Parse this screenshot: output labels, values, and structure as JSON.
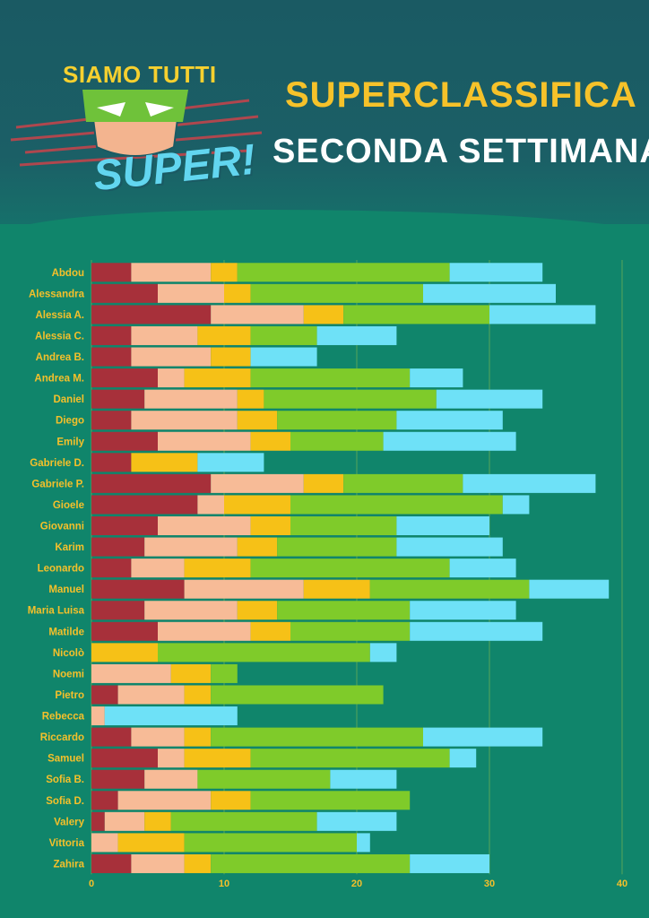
{
  "header": {
    "logo_top": "SIAMO TUTTI",
    "logo_bottom": "SUPER!",
    "title": "SUPERCLASSIFICA",
    "subtitle": "SECONDA SETTIMANA"
  },
  "colors": {
    "background": "#10856b",
    "header": "#1b5c66",
    "label": "#f5c02a",
    "segments": [
      "#a7303a",
      "#f7bb97",
      "#f6c117",
      "#7fcb2a",
      "#6ee1f7"
    ]
  },
  "chart_data": {
    "type": "bar",
    "orientation": "horizontal",
    "stacked": true,
    "xlim": [
      0,
      40
    ],
    "xticks": [
      0,
      10,
      20,
      30,
      40
    ],
    "grid": true,
    "categories": [
      "Abdou",
      "Alessandra",
      "Alessia A.",
      "Alessia C.",
      "Andrea B.",
      "Andrea M.",
      "Daniel",
      "Diego",
      "Emily",
      "Gabriele D.",
      "Gabriele P.",
      "Gioele",
      "Giovanni",
      "Karim",
      "Leonardo",
      "Manuel",
      "Maria Luisa",
      "Matilde",
      "Nicolò",
      "Noemi",
      "Pietro",
      "Rebecca",
      "Riccardo",
      "Samuel",
      "Sofia B.",
      "Sofia D.",
      "Valery",
      "Vittoria",
      "Zahira"
    ],
    "series": [
      {
        "values": [
          3,
          5,
          9,
          3,
          3,
          5,
          4,
          3,
          5,
          3,
          9,
          8,
          5,
          4,
          3,
          7,
          4,
          5,
          0,
          0,
          2,
          0,
          3,
          5,
          4,
          2,
          1,
          0,
          3
        ]
      },
      {
        "values": [
          6,
          5,
          7,
          5,
          6,
          2,
          7,
          8,
          7,
          0,
          7,
          2,
          7,
          7,
          4,
          9,
          7,
          7,
          0,
          6,
          5,
          1,
          4,
          2,
          4,
          7,
          3,
          2,
          4
        ]
      },
      {
        "values": [
          2,
          2,
          3,
          4,
          3,
          5,
          2,
          3,
          3,
          5,
          3,
          5,
          3,
          3,
          5,
          5,
          3,
          3,
          5,
          3,
          2,
          0,
          2,
          5,
          0,
          3,
          2,
          5,
          2
        ]
      },
      {
        "values": [
          16,
          13,
          11,
          5,
          0,
          12,
          13,
          9,
          7,
          0,
          9,
          16,
          8,
          9,
          15,
          12,
          10,
          9,
          16,
          2,
          13,
          0,
          16,
          15,
          10,
          12,
          11,
          13,
          15
        ]
      },
      {
        "values": [
          7,
          10,
          8,
          6,
          5,
          4,
          8,
          8,
          10,
          5,
          10,
          2,
          7,
          8,
          5,
          6,
          8,
          10,
          2,
          0,
          0,
          10,
          9,
          2,
          5,
          0,
          6,
          1,
          6
        ]
      }
    ]
  }
}
